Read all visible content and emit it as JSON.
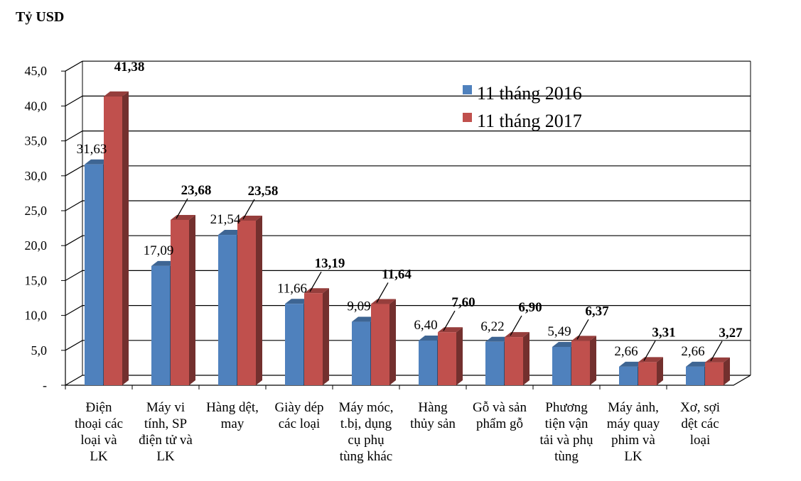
{
  "chart_data": {
    "type": "bar",
    "unit_label": "Tỷ USD",
    "ylim": [
      0,
      45
    ],
    "y_ticks": [
      "-",
      "5,0",
      "10,0",
      "15,0",
      "20,0",
      "25,0",
      "30,0",
      "35,0",
      "40,0",
      "45,0"
    ],
    "grid": true,
    "legend_position": "top-right",
    "categories": [
      [
        "Điện",
        "thoại các",
        "loại và",
        "LK"
      ],
      [
        "Máy vi",
        "tính, SP",
        "điện tử và",
        "LK"
      ],
      [
        "Hàng dệt,",
        "may"
      ],
      [
        "Giày dép",
        "các loại"
      ],
      [
        "Máy móc,",
        "t.bị, dụng",
        "cụ phụ",
        "tùng khác"
      ],
      [
        "Hàng",
        "thủy sản"
      ],
      [
        "Gỗ và sản",
        "phẩm gỗ"
      ],
      [
        "Phương",
        "tiện vận",
        "tải và phụ",
        "tùng"
      ],
      [
        "Máy ảnh,",
        "máy quay",
        "phim và",
        "LK"
      ],
      [
        "Xơ, sợi",
        "dệt các",
        "loại"
      ]
    ],
    "series": [
      {
        "name": "11 tháng 2016",
        "color": "#4f81bd",
        "values": [
          31.63,
          17.09,
          21.54,
          11.66,
          9.09,
          6.4,
          6.22,
          5.49,
          2.66,
          2.66
        ],
        "labels": [
          "31,63",
          "17,09",
          "21,54",
          "11,66",
          "9,09",
          "6,40",
          "6,22",
          "5,49",
          "2,66",
          "2,66"
        ]
      },
      {
        "name": "11 tháng 2017",
        "color": "#c0504d",
        "values": [
          41.38,
          23.68,
          23.58,
          13.19,
          11.64,
          7.6,
          6.9,
          6.37,
          3.31,
          3.27
        ],
        "labels": [
          "41,38",
          "23,68",
          "23,58",
          "13,19",
          "11,64",
          "7,60",
          "6,90",
          "6,37",
          "3,31",
          "3,27"
        ]
      }
    ]
  }
}
